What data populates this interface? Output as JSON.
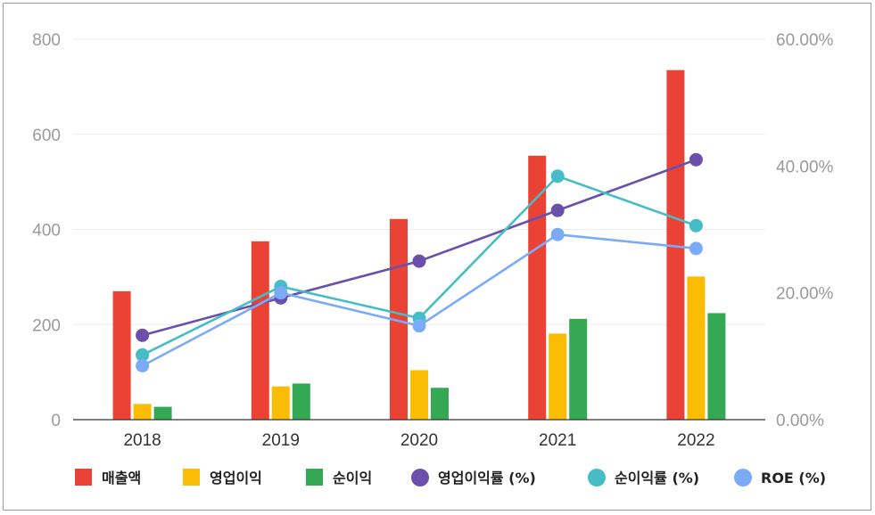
{
  "chart_data": {
    "type": "bar",
    "categories": [
      "2018",
      "2019",
      "2020",
      "2021",
      "2022"
    ],
    "bar_series": [
      {
        "name": "매출액",
        "color": "#ea4335",
        "values": [
          270,
          375,
          422,
          555,
          735
        ]
      },
      {
        "name": "영업이익",
        "color": "#fbbc04",
        "values": [
          33,
          70,
          104,
          181,
          301
        ]
      },
      {
        "name": "순이익",
        "color": "#34a853",
        "values": [
          27,
          76,
          67,
          212,
          224
        ]
      }
    ],
    "line_series": [
      {
        "name": "영업이익률 (%)",
        "color": "#6a4fad",
        "values": [
          13.3,
          19.2,
          25.0,
          33.0,
          41.0
        ]
      },
      {
        "name": "순이익률 (%)",
        "color": "#46bdc6",
        "values": [
          10.2,
          21.0,
          16.0,
          38.4,
          30.6
        ]
      },
      {
        "name": "ROE (%)",
        "color": "#7baaf7",
        "values": [
          8.5,
          20.0,
          14.8,
          29.2,
          27.0
        ]
      }
    ],
    "y_left": {
      "min": 0,
      "max": 800,
      "ticks": [
        "0",
        "200",
        "400",
        "600",
        "800"
      ]
    },
    "y_right": {
      "min": 0,
      "max": 60,
      "ticks": [
        "0.00%",
        "20.00%",
        "40.00%",
        "60.00%"
      ]
    },
    "grid": true,
    "legend_position": "bottom",
    "title": "",
    "xlabel": "",
    "ylabel": ""
  }
}
